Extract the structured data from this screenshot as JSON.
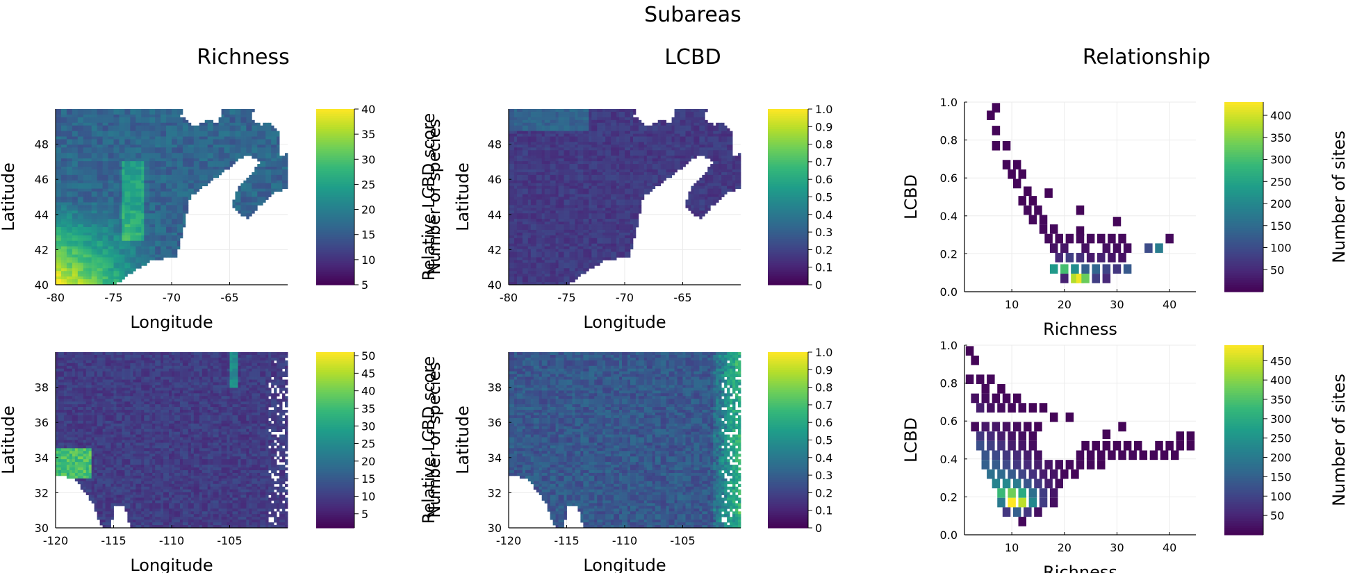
{
  "figure_title": "Subareas",
  "column_titles": [
    "Richness",
    "LCBD",
    "Relationship"
  ],
  "colors": {
    "viridis": [
      "#440154",
      "#482878",
      "#3e4989",
      "#31688e",
      "#26828e",
      "#1f9e89",
      "#35b779",
      "#6ece58",
      "#b5de2b",
      "#fde725"
    ],
    "axis": "#000000",
    "grid": "#ebebeb"
  },
  "chart_data": [
    {
      "id": "richness-northeast",
      "type": "heatmap",
      "title": "",
      "xlabel": "Longitude",
      "ylabel": "Latitude",
      "colorbar_label": "Number of species",
      "xlim": [
        -80,
        -60
      ],
      "ylim": [
        40,
        50
      ],
      "xticks": [
        "-80",
        "-75",
        "-70",
        "-65"
      ],
      "yticks": [
        "40",
        "42",
        "44",
        "46",
        "48"
      ],
      "clim": [
        5,
        40
      ],
      "colorbar_ticks": [
        "5",
        "10",
        "15",
        "20",
        "25",
        "30",
        "35",
        "40"
      ],
      "grid": true,
      "legend": "colorbar-right"
    },
    {
      "id": "lcbd-northeast",
      "type": "heatmap",
      "title": "",
      "xlabel": "Longitude",
      "ylabel": "Latitude",
      "colorbar_label": "Relative LCBD score",
      "xlim": [
        -80,
        -60
      ],
      "ylim": [
        40,
        50
      ],
      "xticks": [
        "-80",
        "-75",
        "-70",
        "-65"
      ],
      "yticks": [
        "40",
        "42",
        "44",
        "46",
        "48"
      ],
      "clim": [
        0,
        1
      ],
      "colorbar_ticks": [
        "0",
        "0.1",
        "0.2",
        "0.3",
        "0.4",
        "0.5",
        "0.6",
        "0.7",
        "0.8",
        "0.9",
        "1.0"
      ],
      "grid": true,
      "legend": "colorbar-right"
    },
    {
      "id": "relationship-northeast",
      "type": "heatmap",
      "title": "",
      "xlabel": "Richness",
      "ylabel": "LCBD",
      "colorbar_label": "Number of sites",
      "xlim": [
        1,
        45
      ],
      "ylim": [
        0,
        1
      ],
      "xticks": [
        "10",
        "20",
        "30",
        "40"
      ],
      "yticks": [
        "0.0",
        "0.2",
        "0.4",
        "0.6",
        "0.8",
        "1.0"
      ],
      "clim": [
        0,
        430
      ],
      "colorbar_ticks": [
        "50",
        "100",
        "150",
        "200",
        "250",
        "300",
        "350",
        "400"
      ],
      "grid": true,
      "legend": "colorbar-right",
      "bins": [
        {
          "x": 7,
          "y": 0.97,
          "n": 5
        },
        {
          "x": 6,
          "y": 0.93,
          "n": 5
        },
        {
          "x": 7,
          "y": 0.85,
          "n": 5
        },
        {
          "x": 7,
          "y": 0.77,
          "n": 5
        },
        {
          "x": 9,
          "y": 0.77,
          "n": 5
        },
        {
          "x": 9,
          "y": 0.67,
          "n": 5
        },
        {
          "x": 11,
          "y": 0.67,
          "n": 5
        },
        {
          "x": 10,
          "y": 0.62,
          "n": 5
        },
        {
          "x": 12,
          "y": 0.62,
          "n": 5
        },
        {
          "x": 11,
          "y": 0.57,
          "n": 5
        },
        {
          "x": 13,
          "y": 0.53,
          "n": 5
        },
        {
          "x": 12,
          "y": 0.48,
          "n": 5
        },
        {
          "x": 14,
          "y": 0.48,
          "n": 5
        },
        {
          "x": 13,
          "y": 0.43,
          "n": 10
        },
        {
          "x": 15,
          "y": 0.43,
          "n": 10
        },
        {
          "x": 17,
          "y": 0.52,
          "n": 5
        },
        {
          "x": 14,
          "y": 0.38,
          "n": 10
        },
        {
          "x": 16,
          "y": 0.38,
          "n": 10
        },
        {
          "x": 16,
          "y": 0.33,
          "n": 10
        },
        {
          "x": 18,
          "y": 0.33,
          "n": 10
        },
        {
          "x": 17,
          "y": 0.28,
          "n": 10
        },
        {
          "x": 19,
          "y": 0.28,
          "n": 10
        },
        {
          "x": 23,
          "y": 0.43,
          "n": 5
        },
        {
          "x": 23,
          "y": 0.32,
          "n": 5
        },
        {
          "x": 18,
          "y": 0.23,
          "n": 20
        },
        {
          "x": 20,
          "y": 0.23,
          "n": 25
        },
        {
          "x": 21,
          "y": 0.28,
          "n": 10
        },
        {
          "x": 23,
          "y": 0.28,
          "n": 10
        },
        {
          "x": 24,
          "y": 0.23,
          "n": 20
        },
        {
          "x": 25,
          "y": 0.28,
          "n": 10
        },
        {
          "x": 27,
          "y": 0.28,
          "n": 10
        },
        {
          "x": 29,
          "y": 0.28,
          "n": 10
        },
        {
          "x": 31,
          "y": 0.28,
          "n": 10
        },
        {
          "x": 30,
          "y": 0.37,
          "n": 5
        },
        {
          "x": 28,
          "y": 0.23,
          "n": 20
        },
        {
          "x": 30,
          "y": 0.23,
          "n": 15
        },
        {
          "x": 32,
          "y": 0.23,
          "n": 15
        },
        {
          "x": 36,
          "y": 0.23,
          "n": 100
        },
        {
          "x": 38,
          "y": 0.23,
          "n": 180
        },
        {
          "x": 40,
          "y": 0.28,
          "n": 10
        },
        {
          "x": 19,
          "y": 0.18,
          "n": 50
        },
        {
          "x": 21,
          "y": 0.18,
          "n": 80
        },
        {
          "x": 23,
          "y": 0.18,
          "n": 60
        },
        {
          "x": 25,
          "y": 0.18,
          "n": 30
        },
        {
          "x": 27,
          "y": 0.18,
          "n": 40
        },
        {
          "x": 29,
          "y": 0.18,
          "n": 25
        },
        {
          "x": 31,
          "y": 0.18,
          "n": 20
        },
        {
          "x": 18,
          "y": 0.12,
          "n": 230
        },
        {
          "x": 20,
          "y": 0.12,
          "n": 300
        },
        {
          "x": 22,
          "y": 0.12,
          "n": 210
        },
        {
          "x": 24,
          "y": 0.12,
          "n": 130
        },
        {
          "x": 26,
          "y": 0.12,
          "n": 140
        },
        {
          "x": 28,
          "y": 0.12,
          "n": 90
        },
        {
          "x": 30,
          "y": 0.12,
          "n": 70
        },
        {
          "x": 32,
          "y": 0.12,
          "n": 120
        },
        {
          "x": 20,
          "y": 0.07,
          "n": 40
        },
        {
          "x": 22,
          "y": 0.07,
          "n": 380
        },
        {
          "x": 23,
          "y": 0.07,
          "n": 420
        },
        {
          "x": 24,
          "y": 0.07,
          "n": 330
        },
        {
          "x": 26,
          "y": 0.07,
          "n": 80
        },
        {
          "x": 28,
          "y": 0.07,
          "n": 50
        }
      ]
    },
    {
      "id": "richness-southwest",
      "type": "heatmap",
      "title": "",
      "xlabel": "Longitude",
      "ylabel": "Latitude",
      "colorbar_label": "Number of species",
      "xlim": [
        -120,
        -100
      ],
      "ylim": [
        30,
        40
      ],
      "xticks": [
        "-120",
        "-115",
        "-110",
        "-105"
      ],
      "yticks": [
        "30",
        "32",
        "34",
        "36",
        "38"
      ],
      "clim": [
        1,
        51
      ],
      "colorbar_ticks": [
        "5",
        "10",
        "15",
        "20",
        "25",
        "30",
        "35",
        "40",
        "45",
        "50"
      ],
      "grid": true,
      "legend": "colorbar-right"
    },
    {
      "id": "lcbd-southwest",
      "type": "heatmap",
      "title": "",
      "xlabel": "Longitude",
      "ylabel": "Latitude",
      "colorbar_label": "Relative LCBD score",
      "xlim": [
        -120,
        -100
      ],
      "ylim": [
        30,
        40
      ],
      "xticks": [
        "-120",
        "-115",
        "-110",
        "-105"
      ],
      "yticks": [
        "30",
        "32",
        "34",
        "36",
        "38"
      ],
      "clim": [
        0,
        1
      ],
      "colorbar_ticks": [
        "0",
        "0.1",
        "0.2",
        "0.3",
        "0.4",
        "0.5",
        "0.6",
        "0.7",
        "0.8",
        "0.9",
        "1.0"
      ],
      "grid": true,
      "legend": "colorbar-right"
    },
    {
      "id": "relationship-southwest",
      "type": "heatmap",
      "title": "",
      "xlabel": "Richness",
      "ylabel": "LCBD",
      "colorbar_label": "Number of sites",
      "xlim": [
        1,
        45
      ],
      "ylim": [
        0,
        1
      ],
      "xticks": [
        "10",
        "20",
        "30",
        "40"
      ],
      "yticks": [
        "0.0",
        "0.2",
        "0.4",
        "0.6",
        "0.8",
        "1.0"
      ],
      "clim": [
        0,
        490
      ],
      "colorbar_ticks": [
        "50",
        "100",
        "150",
        "200",
        "250",
        "300",
        "350",
        "400",
        "450"
      ],
      "grid": true,
      "legend": "colorbar-right",
      "bins": [
        {
          "x": 2,
          "y": 0.97,
          "n": 5
        },
        {
          "x": 3,
          "y": 0.92,
          "n": 5
        },
        {
          "x": 2,
          "y": 0.82,
          "n": 10
        },
        {
          "x": 4,
          "y": 0.82,
          "n": 10
        },
        {
          "x": 6,
          "y": 0.82,
          "n": 10
        },
        {
          "x": 5,
          "y": 0.77,
          "n": 10
        },
        {
          "x": 8,
          "y": 0.77,
          "n": 5
        },
        {
          "x": 3,
          "y": 0.72,
          "n": 20
        },
        {
          "x": 5,
          "y": 0.72,
          "n": 15
        },
        {
          "x": 7,
          "y": 0.72,
          "n": 10
        },
        {
          "x": 9,
          "y": 0.72,
          "n": 10
        },
        {
          "x": 11,
          "y": 0.72,
          "n": 5
        },
        {
          "x": 4,
          "y": 0.67,
          "n": 40
        },
        {
          "x": 6,
          "y": 0.67,
          "n": 20
        },
        {
          "x": 8,
          "y": 0.67,
          "n": 15
        },
        {
          "x": 10,
          "y": 0.67,
          "n": 10
        },
        {
          "x": 12,
          "y": 0.67,
          "n": 10
        },
        {
          "x": 14,
          "y": 0.67,
          "n": 5
        },
        {
          "x": 16,
          "y": 0.67,
          "n": 5
        },
        {
          "x": 18,
          "y": 0.62,
          "n": 5
        },
        {
          "x": 21,
          "y": 0.62,
          "n": 5
        },
        {
          "x": 3,
          "y": 0.57,
          "n": 10
        },
        {
          "x": 5,
          "y": 0.57,
          "n": 30
        },
        {
          "x": 7,
          "y": 0.57,
          "n": 30
        },
        {
          "x": 9,
          "y": 0.57,
          "n": 20
        },
        {
          "x": 11,
          "y": 0.57,
          "n": 15
        },
        {
          "x": 13,
          "y": 0.57,
          "n": 10
        },
        {
          "x": 15,
          "y": 0.57,
          "n": 5
        },
        {
          "x": 4,
          "y": 0.52,
          "n": 80
        },
        {
          "x": 6,
          "y": 0.52,
          "n": 60
        },
        {
          "x": 8,
          "y": 0.52,
          "n": 40
        },
        {
          "x": 10,
          "y": 0.52,
          "n": 25
        },
        {
          "x": 12,
          "y": 0.52,
          "n": 20
        },
        {
          "x": 14,
          "y": 0.52,
          "n": 10
        },
        {
          "x": 31,
          "y": 0.57,
          "n": 5
        },
        {
          "x": 28,
          "y": 0.53,
          "n": 5
        },
        {
          "x": 42,
          "y": 0.52,
          "n": 5
        },
        {
          "x": 44,
          "y": 0.52,
          "n": 5
        },
        {
          "x": 4,
          "y": 0.47,
          "n": 120
        },
        {
          "x": 6,
          "y": 0.47,
          "n": 90
        },
        {
          "x": 8,
          "y": 0.47,
          "n": 70
        },
        {
          "x": 10,
          "y": 0.47,
          "n": 40
        },
        {
          "x": 12,
          "y": 0.47,
          "n": 30
        },
        {
          "x": 14,
          "y": 0.47,
          "n": 15
        },
        {
          "x": 24,
          "y": 0.47,
          "n": 5
        },
        {
          "x": 26,
          "y": 0.47,
          "n": 5
        },
        {
          "x": 28,
          "y": 0.47,
          "n": 5
        },
        {
          "x": 30,
          "y": 0.47,
          "n": 5
        },
        {
          "x": 32,
          "y": 0.47,
          "n": 5
        },
        {
          "x": 34,
          "y": 0.47,
          "n": 5
        },
        {
          "x": 38,
          "y": 0.47,
          "n": 5
        },
        {
          "x": 40,
          "y": 0.47,
          "n": 5
        },
        {
          "x": 42,
          "y": 0.47,
          "n": 5
        },
        {
          "x": 44,
          "y": 0.47,
          "n": 5
        },
        {
          "x": 5,
          "y": 0.42,
          "n": 130
        },
        {
          "x": 7,
          "y": 0.42,
          "n": 110
        },
        {
          "x": 9,
          "y": 0.42,
          "n": 80
        },
        {
          "x": 11,
          "y": 0.42,
          "n": 60
        },
        {
          "x": 13,
          "y": 0.42,
          "n": 40
        },
        {
          "x": 15,
          "y": 0.42,
          "n": 20
        },
        {
          "x": 23,
          "y": 0.42,
          "n": 10
        },
        {
          "x": 25,
          "y": 0.42,
          "n": 10
        },
        {
          "x": 27,
          "y": 0.42,
          "n": 10
        },
        {
          "x": 29,
          "y": 0.42,
          "n": 10
        },
        {
          "x": 31,
          "y": 0.42,
          "n": 10
        },
        {
          "x": 33,
          "y": 0.42,
          "n": 10
        },
        {
          "x": 35,
          "y": 0.42,
          "n": 5
        },
        {
          "x": 37,
          "y": 0.42,
          "n": 5
        },
        {
          "x": 39,
          "y": 0.42,
          "n": 5
        },
        {
          "x": 41,
          "y": 0.42,
          "n": 5
        },
        {
          "x": 5,
          "y": 0.37,
          "n": 150
        },
        {
          "x": 7,
          "y": 0.37,
          "n": 140
        },
        {
          "x": 9,
          "y": 0.37,
          "n": 110
        },
        {
          "x": 11,
          "y": 0.37,
          "n": 80
        },
        {
          "x": 13,
          "y": 0.37,
          "n": 60
        },
        {
          "x": 15,
          "y": 0.37,
          "n": 40
        },
        {
          "x": 17,
          "y": 0.37,
          "n": 25
        },
        {
          "x": 19,
          "y": 0.37,
          "n": 15
        },
        {
          "x": 21,
          "y": 0.37,
          "n": 10
        },
        {
          "x": 23,
          "y": 0.37,
          "n": 10
        },
        {
          "x": 25,
          "y": 0.37,
          "n": 10
        },
        {
          "x": 27,
          "y": 0.37,
          "n": 5
        },
        {
          "x": 6,
          "y": 0.32,
          "n": 180
        },
        {
          "x": 8,
          "y": 0.32,
          "n": 170
        },
        {
          "x": 10,
          "y": 0.32,
          "n": 140
        },
        {
          "x": 12,
          "y": 0.32,
          "n": 100
        },
        {
          "x": 14,
          "y": 0.32,
          "n": 70
        },
        {
          "x": 16,
          "y": 0.32,
          "n": 40
        },
        {
          "x": 18,
          "y": 0.32,
          "n": 25
        },
        {
          "x": 20,
          "y": 0.32,
          "n": 10
        },
        {
          "x": 22,
          "y": 0.32,
          "n": 5
        },
        {
          "x": 7,
          "y": 0.27,
          "n": 220
        },
        {
          "x": 9,
          "y": 0.27,
          "n": 230
        },
        {
          "x": 11,
          "y": 0.27,
          "n": 200
        },
        {
          "x": 13,
          "y": 0.27,
          "n": 130
        },
        {
          "x": 15,
          "y": 0.27,
          "n": 80
        },
        {
          "x": 17,
          "y": 0.27,
          "n": 40
        },
        {
          "x": 19,
          "y": 0.27,
          "n": 15
        },
        {
          "x": 8,
          "y": 0.22,
          "n": 330
        },
        {
          "x": 10,
          "y": 0.22,
          "n": 380
        },
        {
          "x": 12,
          "y": 0.22,
          "n": 300
        },
        {
          "x": 14,
          "y": 0.22,
          "n": 180
        },
        {
          "x": 16,
          "y": 0.22,
          "n": 90
        },
        {
          "x": 18,
          "y": 0.22,
          "n": 30
        },
        {
          "x": 8,
          "y": 0.17,
          "n": 200
        },
        {
          "x": 10,
          "y": 0.17,
          "n": 490
        },
        {
          "x": 12,
          "y": 0.17,
          "n": 440
        },
        {
          "x": 14,
          "y": 0.17,
          "n": 230
        },
        {
          "x": 16,
          "y": 0.17,
          "n": 90
        },
        {
          "x": 18,
          "y": 0.17,
          "n": 20
        },
        {
          "x": 9,
          "y": 0.12,
          "n": 80
        },
        {
          "x": 11,
          "y": 0.12,
          "n": 150
        },
        {
          "x": 13,
          "y": 0.12,
          "n": 80
        },
        {
          "x": 15,
          "y": 0.12,
          "n": 20
        },
        {
          "x": 12,
          "y": 0.07,
          "n": 10
        }
      ]
    }
  ]
}
